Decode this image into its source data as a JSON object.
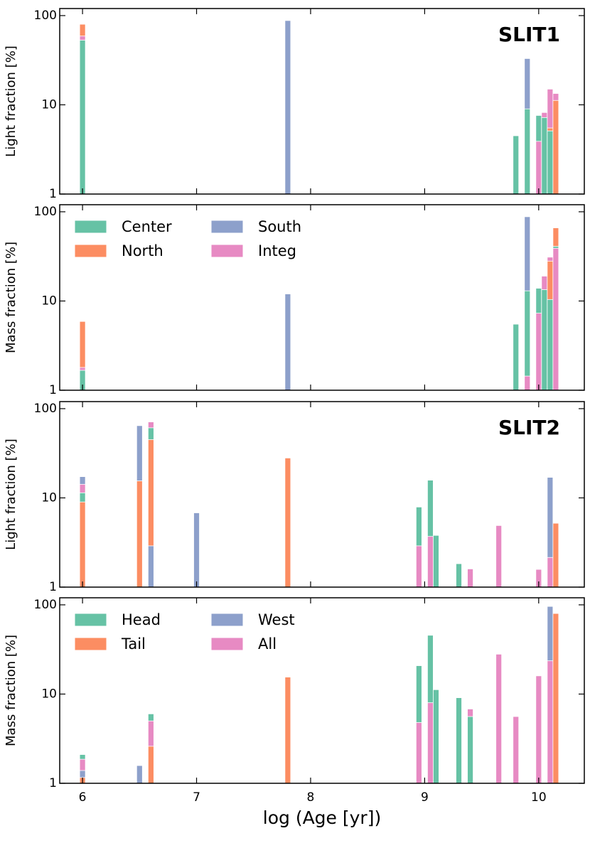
{
  "chart_data": [
    {
      "type": "bar",
      "annotation": "SLIT1",
      "ylabel": "Light fraction [%]",
      "ylim": [
        1,
        120
      ],
      "yticks": [
        1,
        10,
        100
      ],
      "log_y": true,
      "x": [
        6.0,
        7.8,
        9.8,
        9.9,
        10.0,
        10.05,
        10.1,
        10.15
      ],
      "series": [
        {
          "color": "#66c2a5",
          "values": [
            53,
            null,
            4.5,
            9.0,
            7.6,
            7.2,
            5.1,
            null
          ]
        },
        {
          "color": "#fc8d62",
          "values": [
            80,
            null,
            null,
            null,
            null,
            null,
            5.5,
            11.2
          ]
        },
        {
          "color": "#8da0cb",
          "values": [
            null,
            88,
            null,
            33,
            null,
            null,
            null,
            null
          ]
        },
        {
          "color": "#e78ac3",
          "values": [
            59,
            null,
            null,
            null,
            3.9,
            8.2,
            15,
            13.4
          ]
        }
      ]
    },
    {
      "type": "bar",
      "ylabel": "Mass fraction [%]",
      "ylim": [
        1,
        120
      ],
      "yticks": [
        1,
        10,
        100
      ],
      "log_y": true,
      "legend": "upper left",
      "x": [
        6.0,
        7.8,
        9.8,
        9.9,
        10.0,
        10.05,
        10.1,
        10.15
      ],
      "series": [
        {
          "name": "Center",
          "color": "#66c2a5",
          "values": [
            1.67,
            null,
            5.5,
            13,
            13.9,
            13.4,
            10.4,
            41
          ]
        },
        {
          "name": "North",
          "color": "#fc8d62",
          "values": [
            5.9,
            null,
            null,
            null,
            null,
            null,
            28,
            66
          ]
        },
        {
          "name": "South",
          "color": "#8da0cb",
          "values": [
            null,
            12,
            null,
            88,
            null,
            null,
            null,
            null
          ]
        },
        {
          "name": "Integ",
          "color": "#e78ac3",
          "values": [
            1.8,
            null,
            null,
            1.44,
            7.3,
            19,
            31,
            39
          ]
        }
      ]
    },
    {
      "type": "bar",
      "annotation": "SLIT2",
      "ylabel": "Light fraction [%]",
      "ylim": [
        1,
        120
      ],
      "yticks": [
        1,
        10,
        100
      ],
      "log_y": true,
      "x": [
        6.0,
        6.5,
        6.6,
        7.0,
        7.8,
        8.95,
        9.05,
        9.1,
        9.3,
        9.4,
        9.65,
        10.0,
        10.1,
        10.15
      ],
      "series": [
        {
          "color": "#66c2a5",
          "values": [
            11.4,
            null,
            61,
            null,
            null,
            7.9,
            15.8,
            3.8,
            1.83,
            null,
            null,
            null,
            null,
            null
          ]
        },
        {
          "color": "#fc8d62",
          "values": [
            9.0,
            15.5,
            45,
            null,
            28,
            null,
            null,
            null,
            null,
            null,
            null,
            null,
            null,
            5.2
          ]
        },
        {
          "color": "#8da0cb",
          "values": [
            17.3,
            64.5,
            2.9,
            6.8,
            null,
            null,
            null,
            null,
            null,
            null,
            null,
            null,
            17,
            null
          ]
        },
        {
          "color": "#e78ac3",
          "values": [
            14.2,
            null,
            71,
            null,
            null,
            2.9,
            3.7,
            null,
            null,
            1.6,
            4.9,
            1.58,
            2.15,
            null
          ]
        }
      ]
    },
    {
      "type": "bar",
      "ylabel": "Mass fraction [%]",
      "xlabel": "log (Age [yr])",
      "ylim": [
        1,
        120
      ],
      "yticks": [
        1,
        10,
        100
      ],
      "log_y": true,
      "legend": "upper left",
      "xlim": [
        5.8,
        10.4
      ],
      "xticks": [
        6,
        7,
        8,
        9,
        10
      ],
      "x": [
        6.0,
        6.5,
        6.6,
        7.8,
        8.95,
        9.05,
        9.1,
        9.3,
        9.4,
        9.65,
        9.8,
        10.0,
        10.1,
        10.15
      ],
      "series": [
        {
          "name": "Head",
          "color": "#66c2a5",
          "values": [
            2.1,
            null,
            6.0,
            null,
            20.8,
            45.6,
            11.2,
            9.1,
            5.6,
            null,
            null,
            null,
            null,
            null
          ]
        },
        {
          "name": "Tail",
          "color": "#fc8d62",
          "values": [
            1.16,
            null,
            2.6,
            15.5,
            null,
            null,
            null,
            null,
            null,
            null,
            null,
            null,
            null,
            80
          ]
        },
        {
          "name": "West",
          "color": "#8da0cb",
          "values": [
            1.39,
            1.58,
            null,
            null,
            null,
            null,
            null,
            null,
            null,
            null,
            null,
            null,
            96,
            null
          ]
        },
        {
          "name": "All",
          "color": "#e78ac3",
          "values": [
            1.86,
            null,
            5.0,
            null,
            4.8,
            8,
            null,
            null,
            6.8,
            28,
            5.6,
            16,
            23.6,
            null
          ]
        }
      ]
    }
  ]
}
